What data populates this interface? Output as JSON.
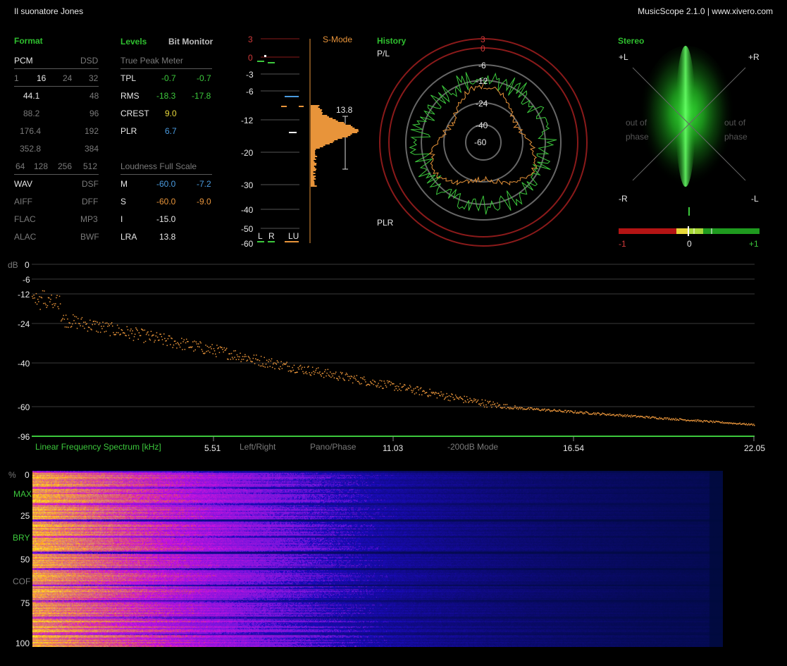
{
  "app": {
    "track_title": "Il suonatore Jones",
    "product": "MusicScope 2.1.0 | www.xivero.com"
  },
  "format": {
    "title": "Format",
    "pcm_label": "PCM",
    "dsd_label": "DSD",
    "bits": [
      "1",
      "16",
      "24",
      "32"
    ],
    "rates_pcm": [
      "44.1",
      "88.2",
      "176.4",
      "352.8"
    ],
    "rates_dsd_left": [
      "48",
      "96",
      "192",
      "384"
    ],
    "dsd_rates": [
      "64",
      "128",
      "256",
      "512"
    ],
    "files": [
      [
        "WAV",
        "DSF"
      ],
      [
        "AIFF",
        "DFF"
      ],
      [
        "FLAC",
        "MP3"
      ],
      [
        "ALAC",
        "BWF"
      ]
    ]
  },
  "levels": {
    "title": "Levels",
    "tab_bit_monitor": "Bit Monitor",
    "true_peak_heading": "True Peak Meter",
    "rows": [
      {
        "label": "TPL",
        "left": "-0.7",
        "right": "-0.7"
      },
      {
        "label": "RMS",
        "left": "-18.3",
        "right": "-17.8"
      },
      {
        "label": "CREST",
        "left": "9.0",
        "right": ""
      },
      {
        "label": "PLR",
        "left": "6.7",
        "right": ""
      }
    ],
    "loudness_heading": "Loudness Full Scale",
    "loud_rows": [
      {
        "label": "M",
        "left": "-60.0",
        "right": "-7.2"
      },
      {
        "label": "S",
        "left": "-60.0",
        "right": "-9.0"
      },
      {
        "label": "I",
        "left": "-15.0",
        "right": ""
      },
      {
        "label": "LRA",
        "left": "13.8",
        "right": ""
      }
    ]
  },
  "meter": {
    "mode": "S-Mode",
    "scale": [
      "3",
      "0",
      "-3",
      "-6",
      "-12",
      "-20",
      "-30",
      "-40",
      "-50",
      "-60"
    ],
    "bottom_labels": [
      "L",
      "R",
      "LU"
    ],
    "lra_value": "13.8"
  },
  "history": {
    "title": "History",
    "top_label": "P/L",
    "bottom_label": "PLR",
    "rings": [
      "3",
      "0",
      "-6",
      "-12",
      "-24",
      "-40",
      "-60"
    ]
  },
  "stereo": {
    "title": "Stereo",
    "corner_tl": "+L",
    "corner_tr": "+R",
    "corner_bl": "-R",
    "corner_br": "-L",
    "out_of_phase_left": [
      "out of",
      "phase"
    ],
    "out_of_phase_right": [
      "out of",
      "phase"
    ],
    "corr_min": "-1",
    "corr_mid": "0",
    "corr_max": "+1"
  },
  "spectrum": {
    "db_label": "dB",
    "y_ticks": [
      "0",
      "-6",
      "-12",
      "-24",
      "-40",
      "-60",
      "-96"
    ],
    "x_title": "Linear Frequency Spectrum [kHz]",
    "x_ticks": [
      "5.51",
      "11.03",
      "16.54",
      "22.05"
    ],
    "options": [
      "Left/Right",
      "Pano/Phase",
      "-200dB Mode"
    ]
  },
  "spectrogram": {
    "y_ticks": [
      "%",
      "0",
      "MAX",
      "25",
      "BRY",
      "50",
      "COF",
      "75",
      "100"
    ]
  }
}
